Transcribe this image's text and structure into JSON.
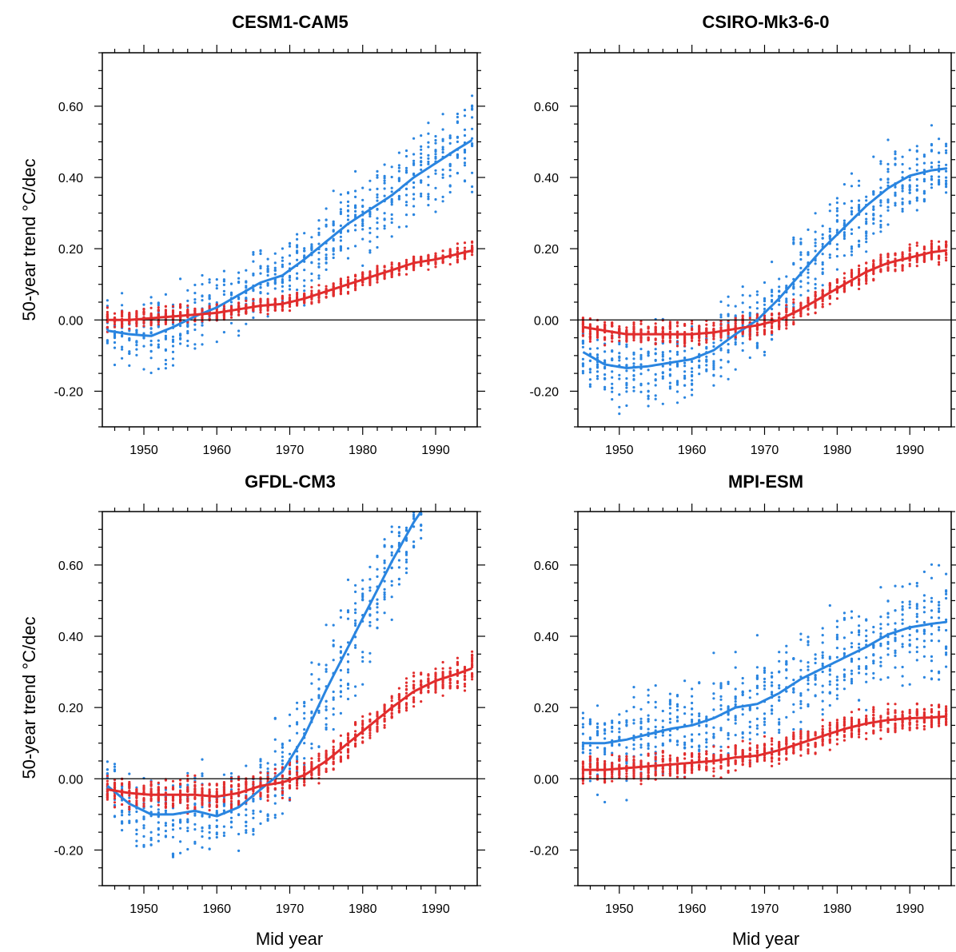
{
  "figure": {
    "ylabel": "50-year trend °C/dec",
    "xlabel": "Mid year"
  },
  "colors": {
    "blue": "#2a85e0",
    "red": "#e12d2d",
    "axis": "#000000"
  },
  "chart_data": [
    {
      "type": "scatter",
      "title": "CESM1-CAM5",
      "xlim": [
        1944.3,
        1995.7
      ],
      "ylim": [
        -0.3,
        0.75
      ],
      "xticks": [
        1950,
        1960,
        1970,
        1980,
        1990
      ],
      "yticks": [
        -0.2,
        0.0,
        0.2,
        0.4,
        0.6
      ],
      "ytick_labels": [
        "-0.20",
        "0.00",
        "0.20",
        "0.40",
        "0.60"
      ],
      "show_ylabel": true,
      "show_xlabel": false,
      "series": [
        {
          "color": "blue",
          "x": [
            1945,
            1948,
            1951,
            1954,
            1957,
            1960,
            1963,
            1966,
            1969,
            1972,
            1975,
            1978,
            1981,
            1984,
            1987,
            1990,
            1993,
            1995
          ],
          "mean": [
            -0.03,
            -0.04,
            -0.045,
            -0.02,
            0.01,
            0.035,
            0.07,
            0.105,
            0.125,
            0.17,
            0.22,
            0.27,
            0.31,
            0.35,
            0.4,
            0.44,
            0.48,
            0.505
          ],
          "spread": [
            0.15,
            0.15,
            0.15,
            0.14,
            0.14,
            0.12,
            0.12,
            0.13,
            0.14,
            0.15,
            0.16,
            0.16,
            0.17,
            0.17,
            0.17,
            0.17,
            0.18,
            0.18
          ]
        },
        {
          "color": "red",
          "x": [
            1945,
            1948,
            1951,
            1954,
            1957,
            1960,
            1963,
            1966,
            1969,
            1972,
            1975,
            1978,
            1981,
            1984,
            1987,
            1990,
            1993,
            1995
          ],
          "mean": [
            0.0,
            0.0,
            0.005,
            0.01,
            0.015,
            0.02,
            0.03,
            0.04,
            0.045,
            0.06,
            0.08,
            0.1,
            0.12,
            0.14,
            0.16,
            0.17,
            0.185,
            0.195
          ],
          "spread": [
            0.04,
            0.04,
            0.04,
            0.04,
            0.035,
            0.035,
            0.03,
            0.03,
            0.03,
            0.03,
            0.03,
            0.03,
            0.03,
            0.03,
            0.03,
            0.03,
            0.035,
            0.035
          ]
        }
      ]
    },
    {
      "type": "scatter",
      "title": "CSIRO-Mk3-6-0",
      "xlim": [
        1944.3,
        1995.7
      ],
      "ylim": [
        -0.3,
        0.75
      ],
      "xticks": [
        1950,
        1960,
        1970,
        1980,
        1990
      ],
      "yticks": [
        -0.2,
        0.0,
        0.2,
        0.4,
        0.6
      ],
      "ytick_labels": [
        "-0.20",
        "0.00",
        "0.20",
        "0.40",
        "0.60"
      ],
      "show_ylabel": false,
      "show_xlabel": false,
      "series": [
        {
          "color": "blue",
          "x": [
            1945,
            1948,
            1951,
            1954,
            1957,
            1960,
            1963,
            1966,
            1969,
            1972,
            1975,
            1978,
            1981,
            1984,
            1987,
            1990,
            1993,
            1995
          ],
          "mean": [
            -0.09,
            -0.125,
            -0.135,
            -0.13,
            -0.12,
            -0.11,
            -0.085,
            -0.04,
            0.0,
            0.06,
            0.13,
            0.2,
            0.26,
            0.32,
            0.37,
            0.405,
            0.42,
            0.425
          ],
          "spread": [
            0.14,
            0.15,
            0.16,
            0.17,
            0.17,
            0.16,
            0.15,
            0.15,
            0.15,
            0.16,
            0.17,
            0.17,
            0.17,
            0.16,
            0.16,
            0.15,
            0.15,
            0.15
          ]
        },
        {
          "color": "red",
          "x": [
            1945,
            1948,
            1951,
            1954,
            1957,
            1960,
            1963,
            1966,
            1969,
            1972,
            1975,
            1978,
            1981,
            1984,
            1987,
            1990,
            1993,
            1995
          ],
          "mean": [
            -0.02,
            -0.03,
            -0.04,
            -0.04,
            -0.04,
            -0.04,
            -0.035,
            -0.025,
            -0.015,
            0.0,
            0.03,
            0.065,
            0.1,
            0.135,
            0.16,
            0.175,
            0.19,
            0.195
          ],
          "spread": [
            0.05,
            0.05,
            0.045,
            0.045,
            0.045,
            0.045,
            0.045,
            0.045,
            0.045,
            0.045,
            0.045,
            0.045,
            0.045,
            0.045,
            0.045,
            0.045,
            0.05,
            0.05
          ]
        }
      ]
    },
    {
      "type": "scatter",
      "title": "GFDL-CM3",
      "xlim": [
        1944.3,
        1995.7
      ],
      "ylim": [
        -0.3,
        0.75
      ],
      "xticks": [
        1950,
        1960,
        1970,
        1980,
        1990
      ],
      "yticks": [
        -0.2,
        0.0,
        0.2,
        0.4,
        0.6
      ],
      "ytick_labels": [
        "-0.20",
        "0.00",
        "0.20",
        "0.40",
        "0.60"
      ],
      "show_ylabel": true,
      "show_xlabel": true,
      "series": [
        {
          "color": "blue",
          "x": [
            1945,
            1948,
            1951,
            1954,
            1957,
            1960,
            1963,
            1966,
            1969,
            1972,
            1975,
            1978,
            1981,
            1984,
            1987,
            1988
          ],
          "mean": [
            -0.02,
            -0.07,
            -0.1,
            -0.1,
            -0.09,
            -0.105,
            -0.08,
            -0.03,
            0.02,
            0.12,
            0.25,
            0.37,
            0.49,
            0.61,
            0.72,
            0.75
          ],
          "spread": [
            0.14,
            0.16,
            0.17,
            0.18,
            0.18,
            0.17,
            0.16,
            0.17,
            0.2,
            0.24,
            0.26,
            0.26,
            0.24,
            0.22,
            0.18,
            0.15
          ]
        },
        {
          "color": "red",
          "x": [
            1945,
            1948,
            1951,
            1954,
            1957,
            1960,
            1963,
            1966,
            1969,
            1972,
            1975,
            1978,
            1981,
            1984,
            1987,
            1990,
            1993,
            1995
          ],
          "mean": [
            -0.03,
            -0.04,
            -0.045,
            -0.045,
            -0.045,
            -0.05,
            -0.04,
            -0.02,
            -0.01,
            0.01,
            0.05,
            0.1,
            0.15,
            0.2,
            0.245,
            0.275,
            0.295,
            0.31
          ],
          "spread": [
            0.06,
            0.06,
            0.06,
            0.06,
            0.06,
            0.06,
            0.06,
            0.06,
            0.06,
            0.06,
            0.06,
            0.06,
            0.06,
            0.06,
            0.06,
            0.06,
            0.065,
            0.065
          ]
        }
      ]
    },
    {
      "type": "scatter",
      "title": "MPI-ESM",
      "xlim": [
        1944.3,
        1995.7
      ],
      "ylim": [
        -0.3,
        0.75
      ],
      "xticks": [
        1950,
        1960,
        1970,
        1980,
        1990
      ],
      "yticks": [
        -0.2,
        0.0,
        0.2,
        0.4,
        0.6
      ],
      "ytick_labels": [
        "-0.20",
        "0.00",
        "0.20",
        "0.40",
        "0.60"
      ],
      "show_ylabel": false,
      "show_xlabel": true,
      "series": [
        {
          "color": "blue",
          "x": [
            1945,
            1948,
            1951,
            1954,
            1957,
            1960,
            1963,
            1966,
            1969,
            1972,
            1975,
            1978,
            1981,
            1984,
            1987,
            1990,
            1993,
            1995
          ],
          "mean": [
            0.1,
            0.1,
            0.11,
            0.125,
            0.14,
            0.15,
            0.17,
            0.2,
            0.21,
            0.24,
            0.28,
            0.31,
            0.34,
            0.37,
            0.405,
            0.425,
            0.435,
            0.44
          ],
          "spread": [
            0.2,
            0.2,
            0.2,
            0.2,
            0.2,
            0.19,
            0.19,
            0.2,
            0.2,
            0.21,
            0.21,
            0.21,
            0.21,
            0.21,
            0.21,
            0.21,
            0.21,
            0.21
          ]
        },
        {
          "color": "red",
          "x": [
            1945,
            1948,
            1951,
            1954,
            1957,
            1960,
            1963,
            1966,
            1969,
            1972,
            1975,
            1978,
            1981,
            1984,
            1987,
            1990,
            1993,
            1995
          ],
          "mean": [
            0.025,
            0.025,
            0.03,
            0.035,
            0.04,
            0.045,
            0.05,
            0.06,
            0.065,
            0.08,
            0.1,
            0.12,
            0.14,
            0.155,
            0.165,
            0.17,
            0.172,
            0.175
          ],
          "spread": [
            0.055,
            0.055,
            0.055,
            0.055,
            0.055,
            0.055,
            0.055,
            0.055,
            0.055,
            0.055,
            0.055,
            0.055,
            0.055,
            0.055,
            0.055,
            0.055,
            0.055,
            0.055
          ]
        }
      ]
    }
  ]
}
